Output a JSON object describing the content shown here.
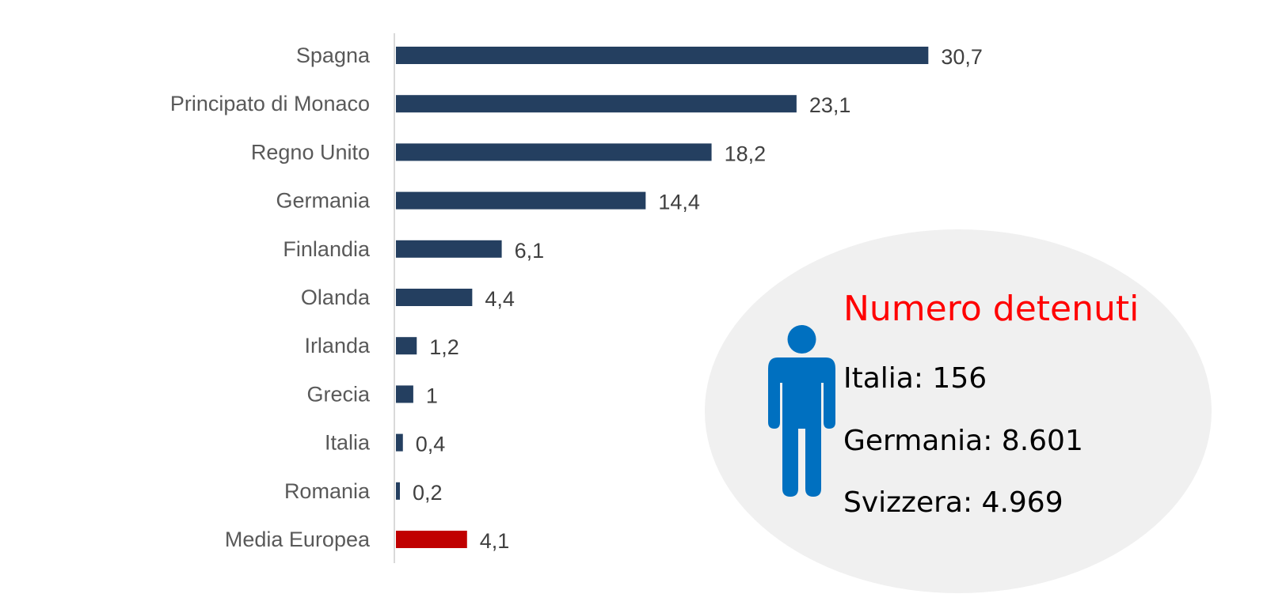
{
  "chart_data": {
    "type": "bar",
    "orientation": "horizontal",
    "title": "",
    "xlabel": "",
    "ylabel": "",
    "categories": [
      "Spagna",
      "Principato di Monaco",
      "Regno Unito",
      "Germania",
      "Finlandia",
      "Olanda",
      "Irlanda",
      "Grecia",
      "Italia",
      "Romania",
      "Media Europea"
    ],
    "values": [
      30.7,
      23.1,
      18.2,
      14.4,
      6.1,
      4.4,
      1.2,
      1,
      0.4,
      0.2,
      4.1
    ],
    "value_labels": [
      "30,7",
      "23,1",
      "18,2",
      "14,4",
      "6,1",
      "4,4",
      "1,2",
      "1",
      "0,4",
      "0,2",
      "4,1"
    ],
    "xlim": [
      0,
      35
    ],
    "grid": false,
    "legend": "none",
    "colors": {
      "bar": "#243f60",
      "highlight": "#c00000",
      "axis": "#d9d9d9"
    },
    "highlight_category": "Media Europea"
  },
  "info_box": {
    "title": "Numero detenuti",
    "icon": "person-icon",
    "icon_color": "#0070c0",
    "lines": [
      "Italia: 156",
      "Germania: 8.601",
      "Svizzera: 4.969"
    ]
  }
}
